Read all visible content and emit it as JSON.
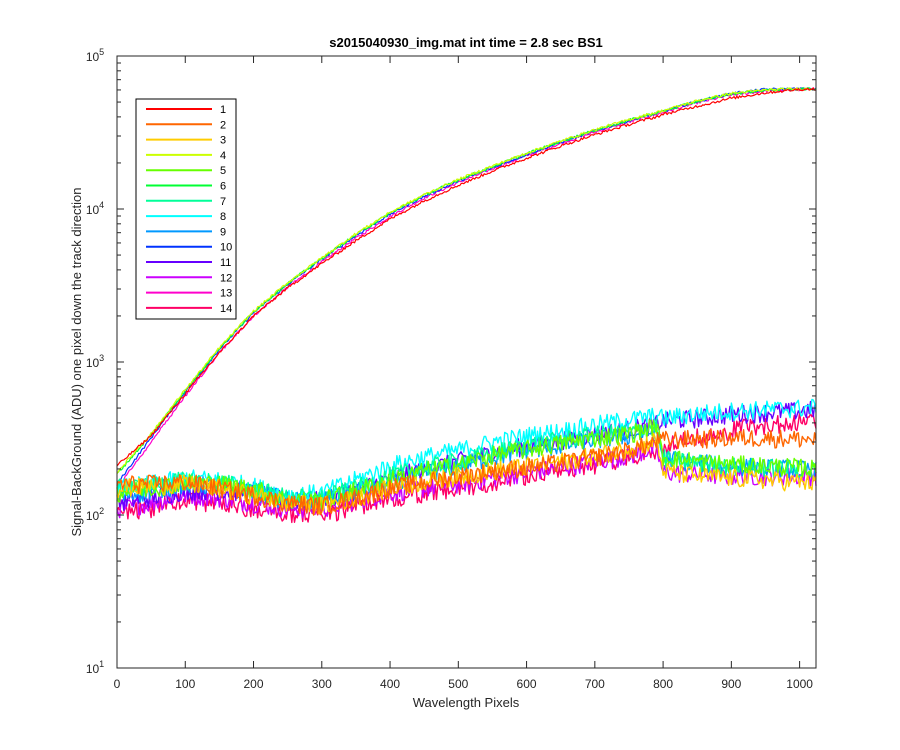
{
  "chart_data": {
    "type": "line",
    "title": "s2015040930_img.mat int time = 2.8 sec   BS1",
    "xlabel": "Wavelength Pixels",
    "ylabel": "Signal-BackGround (ADU) one pixel down the track direction",
    "xlim": [
      0,
      1024
    ],
    "ylim": [
      10,
      100000
    ],
    "yscale": "log",
    "xticks": [
      0,
      100,
      200,
      300,
      400,
      500,
      600,
      700,
      800,
      900,
      1000
    ],
    "xtick_labels": [
      "0",
      "100",
      "200",
      "300",
      "400",
      "500",
      "600",
      "700",
      "800",
      "900",
      "1000"
    ],
    "ytick_labels": [
      {
        "base": "10",
        "exp": "1"
      },
      {
        "base": "10",
        "exp": "2"
      },
      {
        "base": "10",
        "exp": "3"
      },
      {
        "base": "10",
        "exp": "4"
      },
      {
        "base": "10",
        "exp": "5"
      }
    ],
    "grid": false,
    "legend_position": "top-left",
    "x": [
      0,
      50,
      100,
      150,
      200,
      250,
      300,
      350,
      400,
      450,
      500,
      550,
      600,
      650,
      700,
      750,
      780,
      790,
      800,
      850,
      900,
      950,
      1000,
      1024
    ],
    "series": [
      {
        "name": "1",
        "color": "#ff0000",
        "group": "high",
        "values": [
          210,
          330,
          620,
          1150,
          2000,
          3050,
          4400,
          6200,
          8600,
          11300,
          14300,
          17700,
          21500,
          25800,
          30600,
          35700,
          39000,
          40000,
          41500,
          47000,
          53000,
          57500,
          60500,
          61000
        ]
      },
      {
        "name": "2",
        "color": "#ff6600",
        "group": "low",
        "values": [
          160,
          160,
          165,
          150,
          135,
          120,
          115,
          130,
          150,
          165,
          180,
          195,
          205,
          220,
          240,
          265,
          290,
          305,
          310,
          315,
          320,
          320,
          315,
          310
        ]
      },
      {
        "name": "3",
        "color": "#ffcc00",
        "group": "low",
        "values": [
          150,
          155,
          160,
          150,
          135,
          120,
          115,
          130,
          150,
          165,
          180,
          195,
          210,
          225,
          245,
          275,
          300,
          310,
          195,
          180,
          175,
          170,
          165,
          160
        ]
      },
      {
        "name": "4",
        "color": "#ccff00",
        "group": "high",
        "values": [
          190,
          340,
          660,
          1240,
          2150,
          3300,
          4800,
          6900,
          9500,
          12400,
          15600,
          19100,
          23200,
          27800,
          33000,
          38400,
          41800,
          42800,
          44000,
          51000,
          57000,
          60000,
          61000,
          61000
        ]
      },
      {
        "name": "5",
        "color": "#66ff00",
        "group": "low",
        "values": [
          140,
          150,
          165,
          160,
          150,
          125,
          125,
          145,
          170,
          195,
          215,
          245,
          270,
          295,
          320,
          340,
          370,
          390,
          240,
          225,
          215,
          210,
          205,
          200
        ]
      },
      {
        "name": "6",
        "color": "#00ff33",
        "group": "high",
        "values": [
          185,
          335,
          650,
          1230,
          2130,
          3260,
          4750,
          6800,
          9400,
          12300,
          15500,
          18900,
          23000,
          27600,
          32700,
          38000,
          41400,
          42400,
          43600,
          50500,
          56500,
          59800,
          61000,
          61000
        ]
      },
      {
        "name": "7",
        "color": "#00ff99",
        "group": "low",
        "values": [
          150,
          155,
          170,
          165,
          150,
          130,
          130,
          150,
          180,
          205,
          225,
          255,
          285,
          310,
          335,
          350,
          375,
          385,
          235,
          220,
          210,
          205,
          200,
          195
        ]
      },
      {
        "name": "8",
        "color": "#00ffff",
        "group": "low",
        "values": [
          150,
          160,
          175,
          170,
          155,
          135,
          140,
          170,
          210,
          240,
          265,
          300,
          330,
          355,
          390,
          420,
          440,
          445,
          430,
          460,
          480,
          490,
          500,
          510
        ]
      },
      {
        "name": "9",
        "color": "#0099ff",
        "group": "low",
        "values": [
          130,
          145,
          160,
          155,
          145,
          125,
          125,
          145,
          165,
          190,
          210,
          240,
          265,
          285,
          310,
          330,
          350,
          360,
          235,
          220,
          210,
          205,
          200,
          195
        ]
      },
      {
        "name": "10",
        "color": "#0033ff",
        "group": "high",
        "values": [
          160,
          320,
          640,
          1210,
          2100,
          3220,
          4700,
          6700,
          9250,
          12100,
          15200,
          18600,
          22700,
          27300,
          32400,
          37800,
          41200,
          42200,
          43500,
          50500,
          57000,
          60500,
          61000,
          61000
        ]
      },
      {
        "name": "11",
        "color": "#6600ff",
        "group": "low",
        "values": [
          120,
          130,
          145,
          145,
          140,
          125,
          125,
          145,
          175,
          200,
          225,
          255,
          285,
          310,
          340,
          365,
          385,
          395,
          410,
          430,
          455,
          470,
          480,
          490
        ]
      },
      {
        "name": "12",
        "color": "#cc00ff",
        "group": "low",
        "values": [
          110,
          120,
          135,
          130,
          120,
          110,
          110,
          125,
          140,
          150,
          160,
          175,
          190,
          205,
          225,
          245,
          265,
          275,
          190,
          185,
          180,
          180,
          180,
          180
        ]
      },
      {
        "name": "13",
        "color": "#ff00cc",
        "group": "high",
        "values": [
          150,
          300,
          600,
          1150,
          2000,
          3080,
          4500,
          6450,
          8950,
          11800,
          14900,
          18300,
          22300,
          26800,
          31800,
          37000,
          40400,
          41400,
          42700,
          49500,
          55500,
          59000,
          60500,
          61000
        ]
      },
      {
        "name": "14",
        "color": "#ff0066",
        "group": "low",
        "values": [
          105,
          110,
          125,
          120,
          110,
          100,
          100,
          115,
          130,
          140,
          150,
          165,
          180,
          195,
          215,
          240,
          260,
          270,
          280,
          320,
          360,
          390,
          410,
          420
        ]
      }
    ]
  }
}
